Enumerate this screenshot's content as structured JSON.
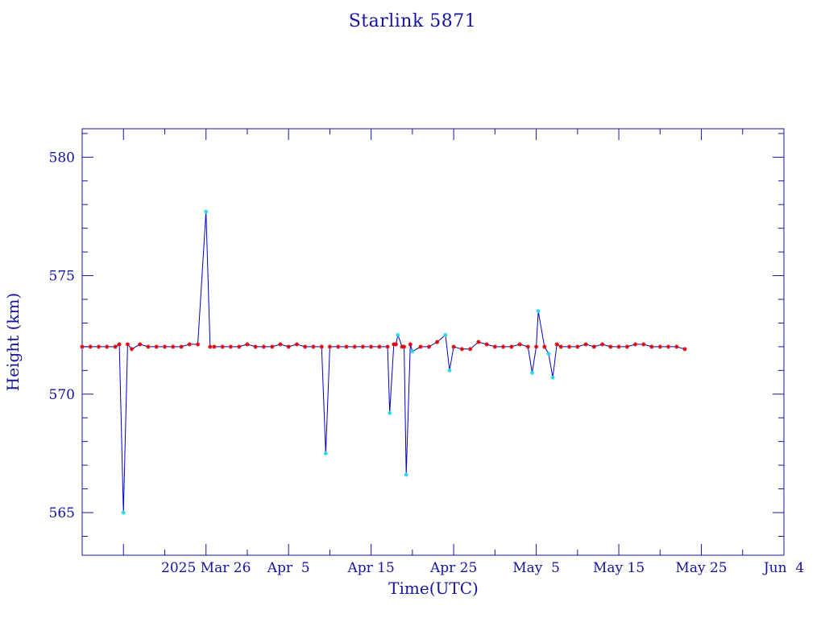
{
  "chart_data": {
    "type": "line",
    "title": "Starlink 5871",
    "xlabel": "Time(UTC)",
    "ylabel": "Height (km)",
    "x_range_days_from_mar16": [
      -5,
      80
    ],
    "ylim": [
      563.2,
      581.2
    ],
    "y_ticks": [
      565,
      570,
      575,
      580
    ],
    "x_ticks": [
      {
        "label": "2025 Mar 26",
        "date": "2025-03-26"
      },
      {
        "label": "Apr  5",
        "date": "2025-04-05"
      },
      {
        "label": "Apr 15",
        "date": "2025-04-15"
      },
      {
        "label": "Apr 25",
        "date": "2025-04-25"
      },
      {
        "label": "May  5",
        "date": "2025-05-05"
      },
      {
        "label": "May 15",
        "date": "2025-05-15"
      },
      {
        "label": "May 25",
        "date": "2025-05-25"
      },
      {
        "label": "Jun  4",
        "date": "2025-06-04"
      }
    ],
    "grid": false,
    "colors": {
      "line": "#0000cc",
      "marker_primary": "#e00000",
      "marker_secondary": "#22d8e8",
      "axis": "#1414a0"
    },
    "series": [
      {
        "values": [
          [
            "2025-03-11",
            572.0
          ],
          [
            "2025-03-12",
            572.0
          ],
          [
            "2025-03-13",
            572.0
          ],
          [
            "2025-03-14",
            572.0
          ],
          [
            "2025-03-15",
            572.0
          ],
          [
            "2025-03-15T12:00",
            572.1
          ],
          [
            "2025-03-16",
            565.0
          ],
          [
            "2025-03-16T12:00",
            572.1
          ],
          [
            "2025-03-17",
            571.9
          ],
          [
            "2025-03-18",
            572.1
          ],
          [
            "2025-03-19",
            572.0
          ],
          [
            "2025-03-20",
            572.0
          ],
          [
            "2025-03-21",
            572.0
          ],
          [
            "2025-03-22",
            572.0
          ],
          [
            "2025-03-23",
            572.0
          ],
          [
            "2025-03-24",
            572.1
          ],
          [
            "2025-03-25",
            572.1
          ],
          [
            "2025-03-26",
            577.7
          ],
          [
            "2025-03-26T12:00",
            572.0
          ],
          [
            "2025-03-27",
            572.0
          ],
          [
            "2025-03-28",
            572.0
          ],
          [
            "2025-03-29",
            572.0
          ],
          [
            "2025-03-30",
            572.0
          ],
          [
            "2025-03-31",
            572.1
          ],
          [
            "2025-04-01",
            572.0
          ],
          [
            "2025-04-02",
            572.0
          ],
          [
            "2025-04-03",
            572.0
          ],
          [
            "2025-04-04",
            572.1
          ],
          [
            "2025-04-05",
            572.0
          ],
          [
            "2025-04-06",
            572.1
          ],
          [
            "2025-04-07",
            572.0
          ],
          [
            "2025-04-08",
            572.0
          ],
          [
            "2025-04-09",
            572.0
          ],
          [
            "2025-04-09T12:00",
            567.5
          ],
          [
            "2025-04-10",
            572.0
          ],
          [
            "2025-04-11",
            572.0
          ],
          [
            "2025-04-12",
            572.0
          ],
          [
            "2025-04-13",
            572.0
          ],
          [
            "2025-04-14",
            572.0
          ],
          [
            "2025-04-15",
            572.0
          ],
          [
            "2025-04-16",
            572.0
          ],
          [
            "2025-04-17",
            572.0
          ],
          [
            "2025-04-17T06:00",
            569.2
          ],
          [
            "2025-04-17T18:00",
            572.1
          ],
          [
            "2025-04-18",
            572.1
          ],
          [
            "2025-04-18T06:00",
            572.5
          ],
          [
            "2025-04-18T18:00",
            572.0
          ],
          [
            "2025-04-19",
            572.0
          ],
          [
            "2025-04-19T06:00",
            566.6
          ],
          [
            "2025-04-19T18:00",
            572.1
          ],
          [
            "2025-04-20",
            571.8
          ],
          [
            "2025-04-21",
            572.0
          ],
          [
            "2025-04-22",
            572.0
          ],
          [
            "2025-04-23",
            572.2
          ],
          [
            "2025-04-24",
            572.5
          ],
          [
            "2025-04-24T12:00",
            571.0
          ],
          [
            "2025-04-25",
            572.0
          ],
          [
            "2025-04-26",
            571.9
          ],
          [
            "2025-04-27",
            571.9
          ],
          [
            "2025-04-28",
            572.2
          ],
          [
            "2025-04-29",
            572.1
          ],
          [
            "2025-04-30",
            572.0
          ],
          [
            "2025-05-01",
            572.0
          ],
          [
            "2025-05-02",
            572.0
          ],
          [
            "2025-05-03",
            572.1
          ],
          [
            "2025-05-04",
            572.0
          ],
          [
            "2025-05-04T12:00",
            570.9
          ],
          [
            "2025-05-05",
            572.0
          ],
          [
            "2025-05-05T06:00",
            573.5
          ],
          [
            "2025-05-06",
            572.0
          ],
          [
            "2025-05-06T12:00",
            571.7
          ],
          [
            "2025-05-07",
            570.7
          ],
          [
            "2025-05-07T12:00",
            572.1
          ],
          [
            "2025-05-08",
            572.0
          ],
          [
            "2025-05-09",
            572.0
          ],
          [
            "2025-05-10",
            572.0
          ],
          [
            "2025-05-11",
            572.1
          ],
          [
            "2025-05-12",
            572.0
          ],
          [
            "2025-05-13",
            572.1
          ],
          [
            "2025-05-14",
            572.0
          ],
          [
            "2025-05-15",
            572.0
          ],
          [
            "2025-05-16",
            572.0
          ],
          [
            "2025-05-17",
            572.1
          ],
          [
            "2025-05-18",
            572.1
          ],
          [
            "2025-05-19",
            572.0
          ],
          [
            "2025-05-20",
            572.0
          ],
          [
            "2025-05-21",
            572.0
          ],
          [
            "2025-05-22",
            572.0
          ],
          [
            "2025-05-23",
            571.9
          ]
        ]
      }
    ]
  }
}
